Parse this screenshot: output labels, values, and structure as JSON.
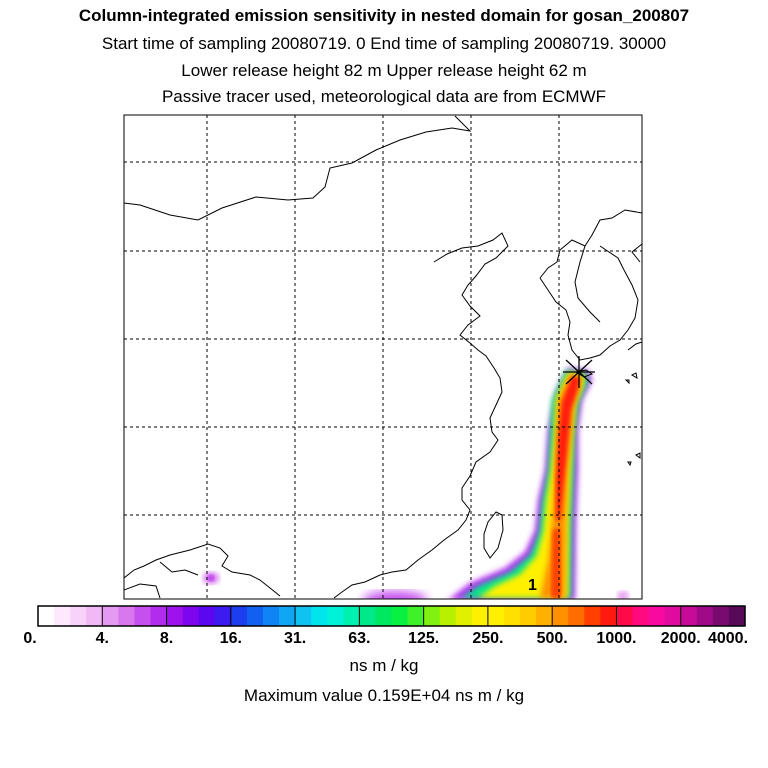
{
  "header": {
    "title": "Column-integrated emission sensitivity in nested domain for gosan_200807",
    "sampling_line": "Start time of sampling 20080719.     0     End time of sampling 20080719. 30000",
    "release_line": "Lower release height   82 m          Upper release height   62 m",
    "tracer_line": "Passive tracer used, meteorological data are from ECMWF"
  },
  "map": {
    "release_marker": "release-site-star",
    "contour_label": "1"
  },
  "colorbar": {
    "labels": [
      "0.",
      "4.",
      "8.",
      "16.",
      "31.",
      "63.",
      "125.",
      "250.",
      "500.",
      "1000.",
      "2000.",
      "4000."
    ],
    "colors": [
      "#ffffff",
      "#fde8fd",
      "#f8d2f8",
      "#f0b8f4",
      "#e49af0",
      "#d877ee",
      "#c650ee",
      "#b22cee",
      "#9f12ee",
      "#7e06ee",
      "#5a08ef",
      "#3c1af0",
      "#1c3ef0",
      "#1260f2",
      "#0f84f4",
      "#0fa6f4",
      "#0fc2f2",
      "#00e4ec",
      "#00f2d8",
      "#00f0b0",
      "#00e888",
      "#00e860",
      "#08f040",
      "#40f028",
      "#80f010",
      "#b8f000",
      "#e0f000",
      "#fff000",
      "#fff000",
      "#ffe000",
      "#ffcc00",
      "#ffb000",
      "#ff9000",
      "#ff6c00",
      "#ff4000",
      "#ff1a10",
      "#ff0a48",
      "#ff0a80",
      "#f80aa0",
      "#e00aa0",
      "#c80a98",
      "#a00a88",
      "#780a70",
      "#580a58"
    ],
    "units": "ns m / kg",
    "max_text": "Maximum value  0.159E+04 ns m / kg"
  },
  "colors": {
    "plume_low": "#9f12ee",
    "plume_mid": "#fff000",
    "plume_high": "#ff1a10"
  }
}
